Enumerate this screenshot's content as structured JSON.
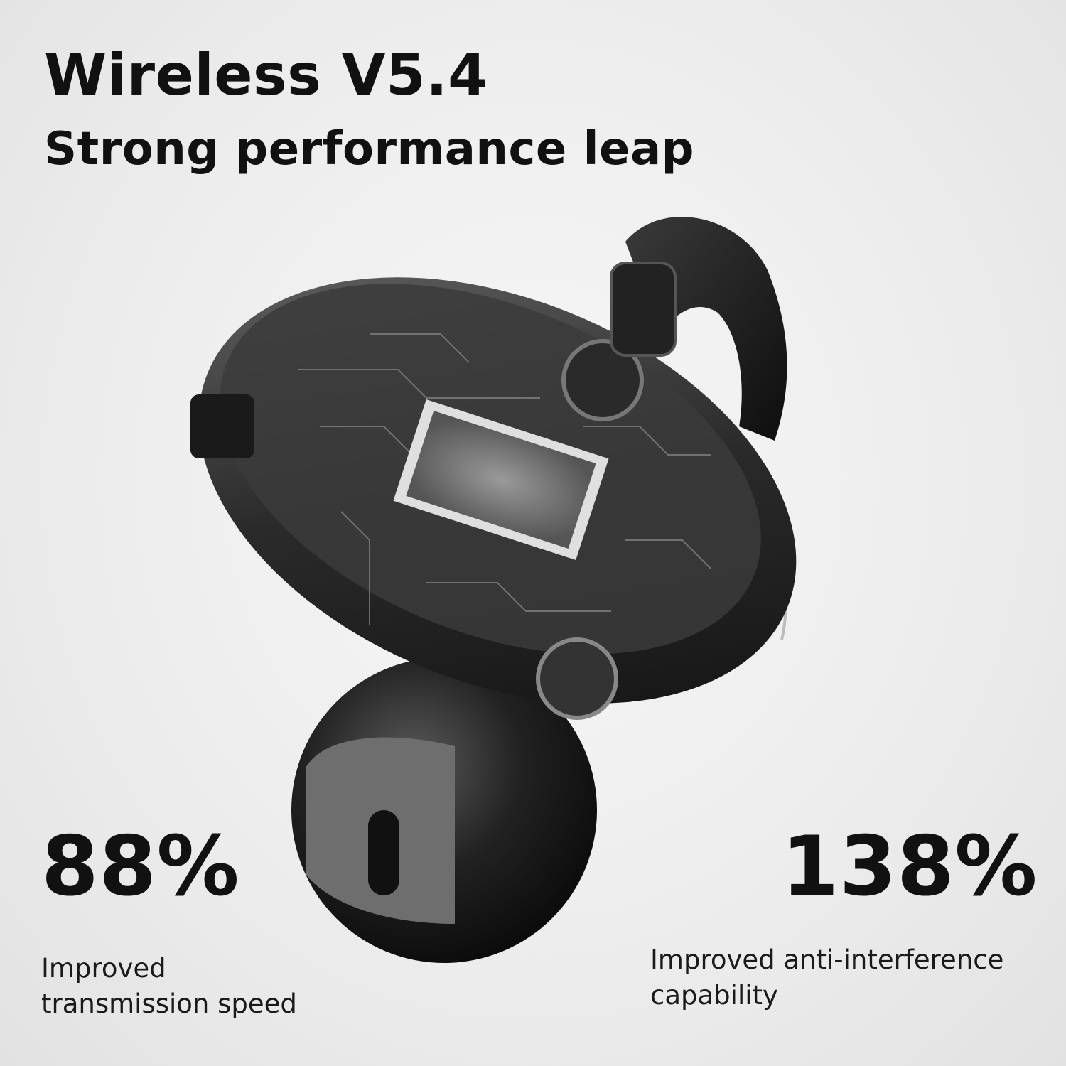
{
  "header": {
    "title": "Wireless V5.4",
    "subtitle": "Strong performance leap"
  },
  "stats": [
    {
      "value": "88%",
      "line1": "Improved",
      "line2": "transmission speed"
    },
    {
      "value": "138%",
      "line1": "Improved anti-interference",
      "line2": "capability"
    }
  ],
  "colors": {
    "text": "#111111",
    "background": "#eeeeee",
    "product": "#1c1c1c"
  }
}
